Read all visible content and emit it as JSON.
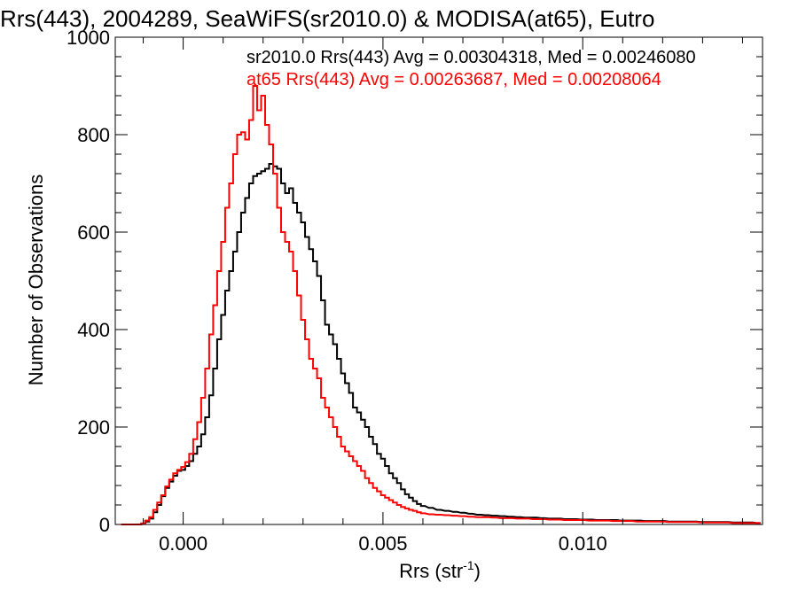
{
  "chart_data": {
    "type": "line",
    "title": "Rrs(443), 2004289, SeaWiFS(sr2010.0) & MODISA(at65), Eutro",
    "xlabel_main": "Rrs (str",
    "xlabel_sup": "-1",
    "xlabel_close": ")",
    "ylabel": "Number of Observations",
    "xlim": [
      -0.0017,
      0.0145
    ],
    "ylim": [
      0,
      1000
    ],
    "x_ticks": [
      {
        "value": 0.0,
        "label": "0.000"
      },
      {
        "value": 0.005,
        "label": "0.005"
      },
      {
        "value": 0.01,
        "label": "0.010"
      }
    ],
    "y_ticks": [
      {
        "value": 0,
        "label": "0"
      },
      {
        "value": 200,
        "label": "200"
      },
      {
        "value": 400,
        "label": "400"
      },
      {
        "value": 600,
        "label": "600"
      },
      {
        "value": 800,
        "label": "800"
      },
      {
        "value": 1000,
        "label": "1000"
      }
    ],
    "bin_width": 0.0001,
    "annotations": [
      {
        "text": "sr2010.0 Rrs(443) Avg = 0.00304318, Med = 0.00246080",
        "color": "#000000"
      },
      {
        "text": "at65 Rrs(443) Avg = 0.00263687, Med = 0.00208064",
        "color": "#ff0000"
      }
    ],
    "series": [
      {
        "color": "#000000",
        "x": [
          -0.0015,
          -0.0014,
          -0.0013,
          -0.0012,
          -0.0011,
          -0.001,
          -0.0009,
          -0.0008,
          -0.0007,
          -0.0006,
          -0.0005,
          -0.0004,
          -0.0003,
          -0.0002,
          -0.0001,
          0.0,
          0.0001,
          0.0002,
          0.0003,
          0.0004,
          0.0005,
          0.0006,
          0.0007,
          0.0008,
          0.0009,
          0.001,
          0.0011,
          0.0012,
          0.0013,
          0.0014,
          0.0015,
          0.0016,
          0.0017,
          0.0018,
          0.0019,
          0.002,
          0.0021,
          0.0022,
          0.0023,
          0.0024,
          0.0025,
          0.0026,
          0.0027,
          0.0028,
          0.0029,
          0.003,
          0.0031,
          0.0032,
          0.0033,
          0.0034,
          0.0035,
          0.0036,
          0.0037,
          0.0038,
          0.0039,
          0.004,
          0.0041,
          0.0042,
          0.0043,
          0.0044,
          0.0045,
          0.0046,
          0.0047,
          0.0048,
          0.0049,
          0.005,
          0.0051,
          0.0052,
          0.0053,
          0.0054,
          0.0055,
          0.0056,
          0.0057,
          0.0058,
          0.0059,
          0.006,
          0.0062,
          0.0064,
          0.0066,
          0.0068,
          0.007,
          0.0072,
          0.0074,
          0.0076,
          0.0078,
          0.008,
          0.0082,
          0.0084,
          0.0086,
          0.0088,
          0.009,
          0.0092,
          0.0094,
          0.0096,
          0.0098,
          0.01,
          0.0102,
          0.0104,
          0.0106,
          0.0108,
          0.011,
          0.0112,
          0.0114,
          0.0116,
          0.0118,
          0.012,
          0.0122,
          0.0124,
          0.0126,
          0.0128,
          0.013,
          0.0132,
          0.0134,
          0.0136,
          0.0138,
          0.014,
          0.0142,
          0.0144
        ],
        "values": [
          0,
          0,
          0,
          0,
          0,
          2,
          6,
          12,
          25,
          40,
          58,
          75,
          88,
          100,
          110,
          112,
          120,
          130,
          145,
          160,
          185,
          220,
          265,
          320,
          380,
          430,
          480,
          520,
          560,
          600,
          640,
          670,
          700,
          715,
          720,
          725,
          730,
          740,
          735,
          730,
          700,
          680,
          690,
          660,
          640,
          620,
          590,
          565,
          540,
          510,
          460,
          410,
          390,
          370,
          340,
          310,
          290,
          270,
          240,
          230,
          215,
          200,
          180,
          165,
          145,
          135,
          120,
          105,
          95,
          85,
          72,
          62,
          55,
          48,
          42,
          38,
          34,
          30,
          28,
          26,
          24,
          22,
          20,
          19,
          18,
          17,
          16,
          15,
          14,
          14,
          13,
          12,
          12,
          11,
          11,
          10,
          10,
          9,
          9,
          9,
          8,
          8,
          8,
          7,
          7,
          7,
          6,
          6,
          6,
          6,
          5,
          5,
          5,
          5,
          4,
          4,
          4,
          3
        ]
      },
      {
        "color": "#ff0000",
        "x": [
          -0.0015,
          -0.0014,
          -0.0013,
          -0.0012,
          -0.0011,
          -0.001,
          -0.0009,
          -0.0008,
          -0.0007,
          -0.0006,
          -0.0005,
          -0.0004,
          -0.0003,
          -0.0002,
          -0.0001,
          0.0,
          0.0001,
          0.0002,
          0.0003,
          0.0004,
          0.0005,
          0.0006,
          0.0007,
          0.0008,
          0.0009,
          0.001,
          0.0011,
          0.0012,
          0.0013,
          0.0014,
          0.0015,
          0.0016,
          0.0017,
          0.0018,
          0.0019,
          0.002,
          0.0021,
          0.0022,
          0.0023,
          0.0024,
          0.0025,
          0.0026,
          0.0027,
          0.0028,
          0.0029,
          0.003,
          0.0031,
          0.0032,
          0.0033,
          0.0034,
          0.0035,
          0.0036,
          0.0037,
          0.0038,
          0.0039,
          0.004,
          0.0041,
          0.0042,
          0.0043,
          0.0044,
          0.0045,
          0.0046,
          0.0047,
          0.0048,
          0.0049,
          0.005,
          0.0051,
          0.0052,
          0.0053,
          0.0054,
          0.0055,
          0.0056,
          0.0057,
          0.0058,
          0.0059,
          0.006,
          0.0062,
          0.0064,
          0.0066,
          0.0068,
          0.007,
          0.0072,
          0.0074,
          0.0076,
          0.0078,
          0.008,
          0.0082,
          0.0084,
          0.0086,
          0.0088,
          0.009,
          0.0092,
          0.0094,
          0.0096,
          0.0098,
          0.01,
          0.0102,
          0.0104,
          0.0106,
          0.0108,
          0.011,
          0.0112,
          0.0114,
          0.0116,
          0.0118,
          0.012,
          0.0122,
          0.0124,
          0.0126,
          0.0128,
          0.013,
          0.0132,
          0.0134,
          0.0136,
          0.0138,
          0.014,
          0.0142,
          0.0144
        ],
        "values": [
          0,
          0,
          0,
          0,
          0,
          2,
          8,
          15,
          30,
          45,
          60,
          78,
          92,
          105,
          112,
          118,
          128,
          145,
          175,
          210,
          260,
          320,
          390,
          450,
          520,
          580,
          650,
          700,
          760,
          800,
          805,
          790,
          830,
          900,
          850,
          880,
          820,
          780,
          720,
          650,
          600,
          580,
          560,
          520,
          470,
          420,
          380,
          340,
          320,
          300,
          260,
          240,
          220,
          200,
          180,
          160,
          150,
          140,
          130,
          120,
          110,
          95,
          85,
          75,
          68,
          60,
          55,
          50,
          45,
          40,
          36,
          33,
          30,
          28,
          25,
          23,
          21,
          20,
          19,
          18,
          17,
          16,
          15,
          15,
          14,
          13,
          13,
          12,
          12,
          11,
          11,
          10,
          10,
          9,
          9,
          9,
          8,
          8,
          8,
          7,
          7,
          7,
          6,
          6,
          6,
          6,
          5,
          5,
          5,
          5,
          4,
          4,
          4,
          4,
          3,
          3,
          3,
          3
        ]
      }
    ]
  }
}
